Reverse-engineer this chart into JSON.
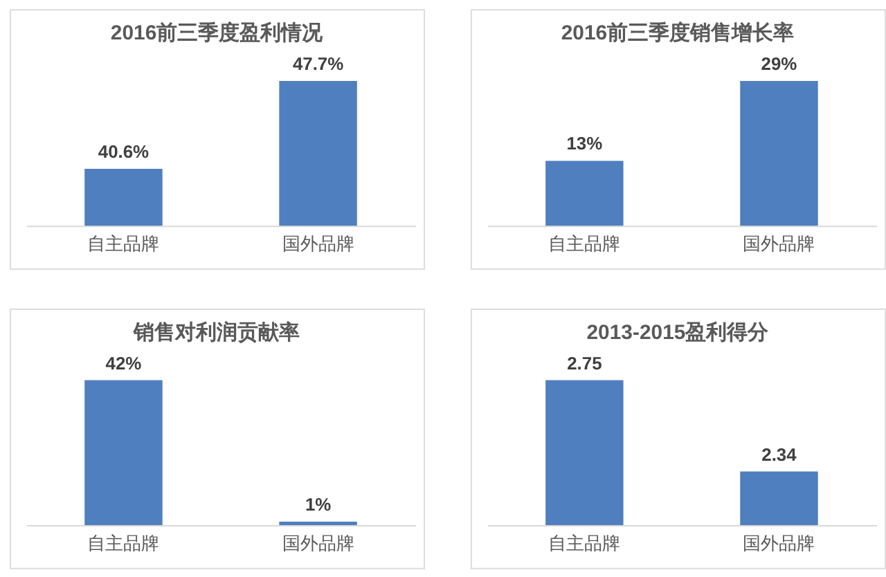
{
  "chart_data": [
    {
      "type": "bar",
      "title": "2016前三季度盈利情况",
      "categories": [
        "自主品牌",
        "国外品牌"
      ],
      "values": [
        40.6,
        47.7
      ],
      "value_labels": [
        "40.6%",
        "47.7%"
      ],
      "color": "#4f7fbe",
      "ylim": [
        36,
        47.7
      ],
      "tick_labels": "x"
    },
    {
      "type": "bar",
      "title": "2016前三季度销售增长率",
      "categories": [
        "自主品牌",
        "国外品牌"
      ],
      "values": [
        13,
        29
      ],
      "value_labels": [
        "13%",
        "29%"
      ],
      "color": "#4f7fbe",
      "ylim": [
        0,
        29
      ],
      "tick_labels": "x"
    },
    {
      "type": "bar",
      "title": "销售对利润贡献率",
      "categories": [
        "自主品牌",
        "国外品牌"
      ],
      "values": [
        42,
        1
      ],
      "value_labels": [
        "42%",
        "1%"
      ],
      "color": "#4f7fbe",
      "ylim": [
        0,
        42
      ],
      "tick_labels": "x"
    },
    {
      "type": "bar",
      "title": "2013-2015盈利得分",
      "categories": [
        "自主品牌",
        "国外品牌"
      ],
      "values": [
        2.75,
        2.34
      ],
      "data_labels": true,
      "color": "#4f7fbe",
      "ylim": [
        2.1,
        2.75
      ],
      "tick_labels": "x"
    }
  ]
}
